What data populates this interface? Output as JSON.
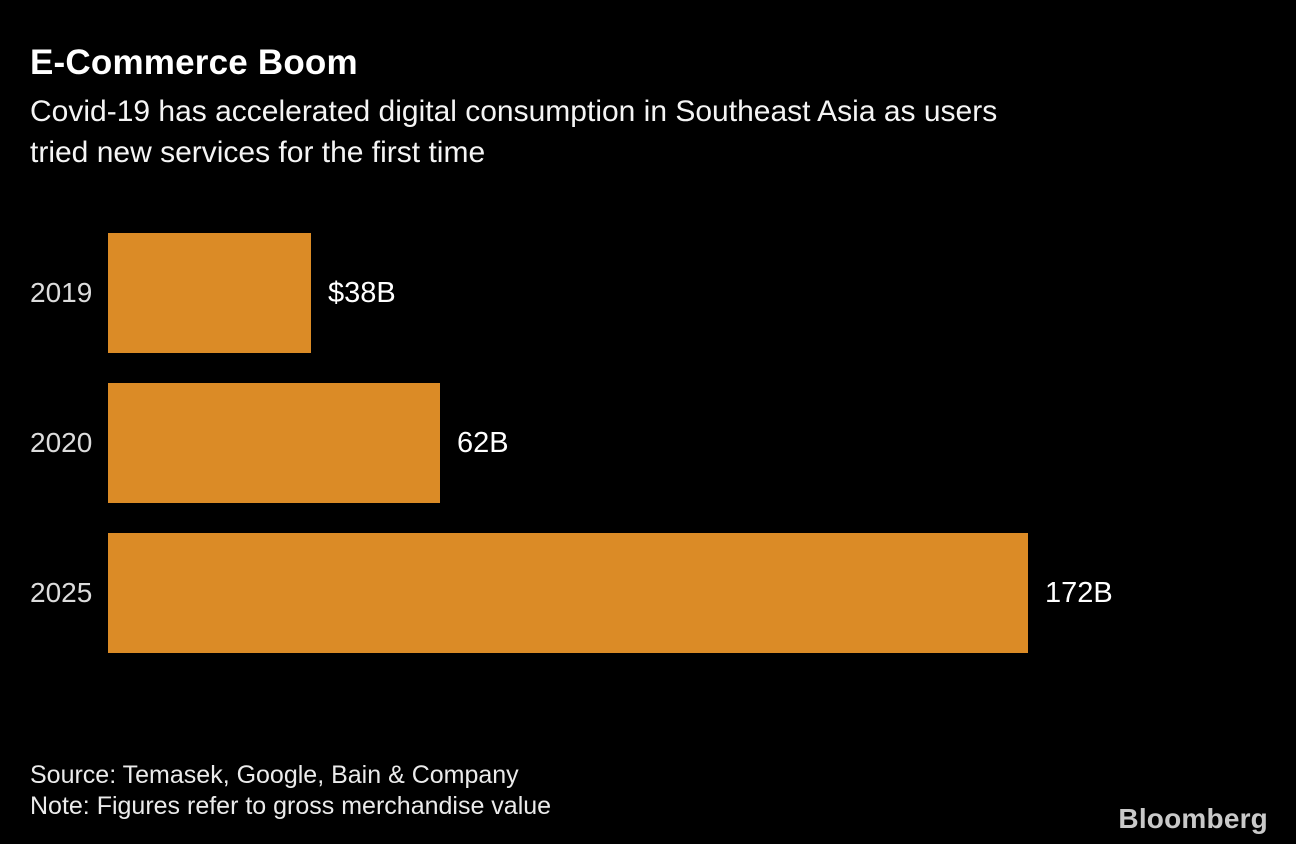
{
  "header": {
    "title": "E-Commerce Boom",
    "subtitle": "Covid-19 has accelerated digital consumption in Southeast Asia as users tried new services for the first time",
    "subtitle_lines": [
      "Covid-19 has accelerated digital consumption in Southeast Asia as users",
      "tried new services for the first time"
    ]
  },
  "chart_data": {
    "type": "bar",
    "orientation": "horizontal",
    "title": "E-Commerce Boom",
    "subtitle": "Covid-19 has accelerated digital consumption in Southeast Asia as users tried new services for the first time",
    "categories": [
      "2019",
      "2020",
      "2025"
    ],
    "values": [
      38,
      62,
      172
    ],
    "value_labels": [
      "$38B",
      "62B",
      "172B"
    ],
    "unit": "$B",
    "xlim": [
      0,
      172
    ],
    "grid": false,
    "legend": false,
    "bar_color": "#db8b26",
    "category_label_color": "#dcdcdc",
    "value_label_color": "#ffffff",
    "background_color": "#000000"
  },
  "footer": {
    "source": "Source: Temasek, Google, Bain & Company",
    "note": "Note: Figures refer to gross merchandise value",
    "brand": "Bloomberg"
  }
}
